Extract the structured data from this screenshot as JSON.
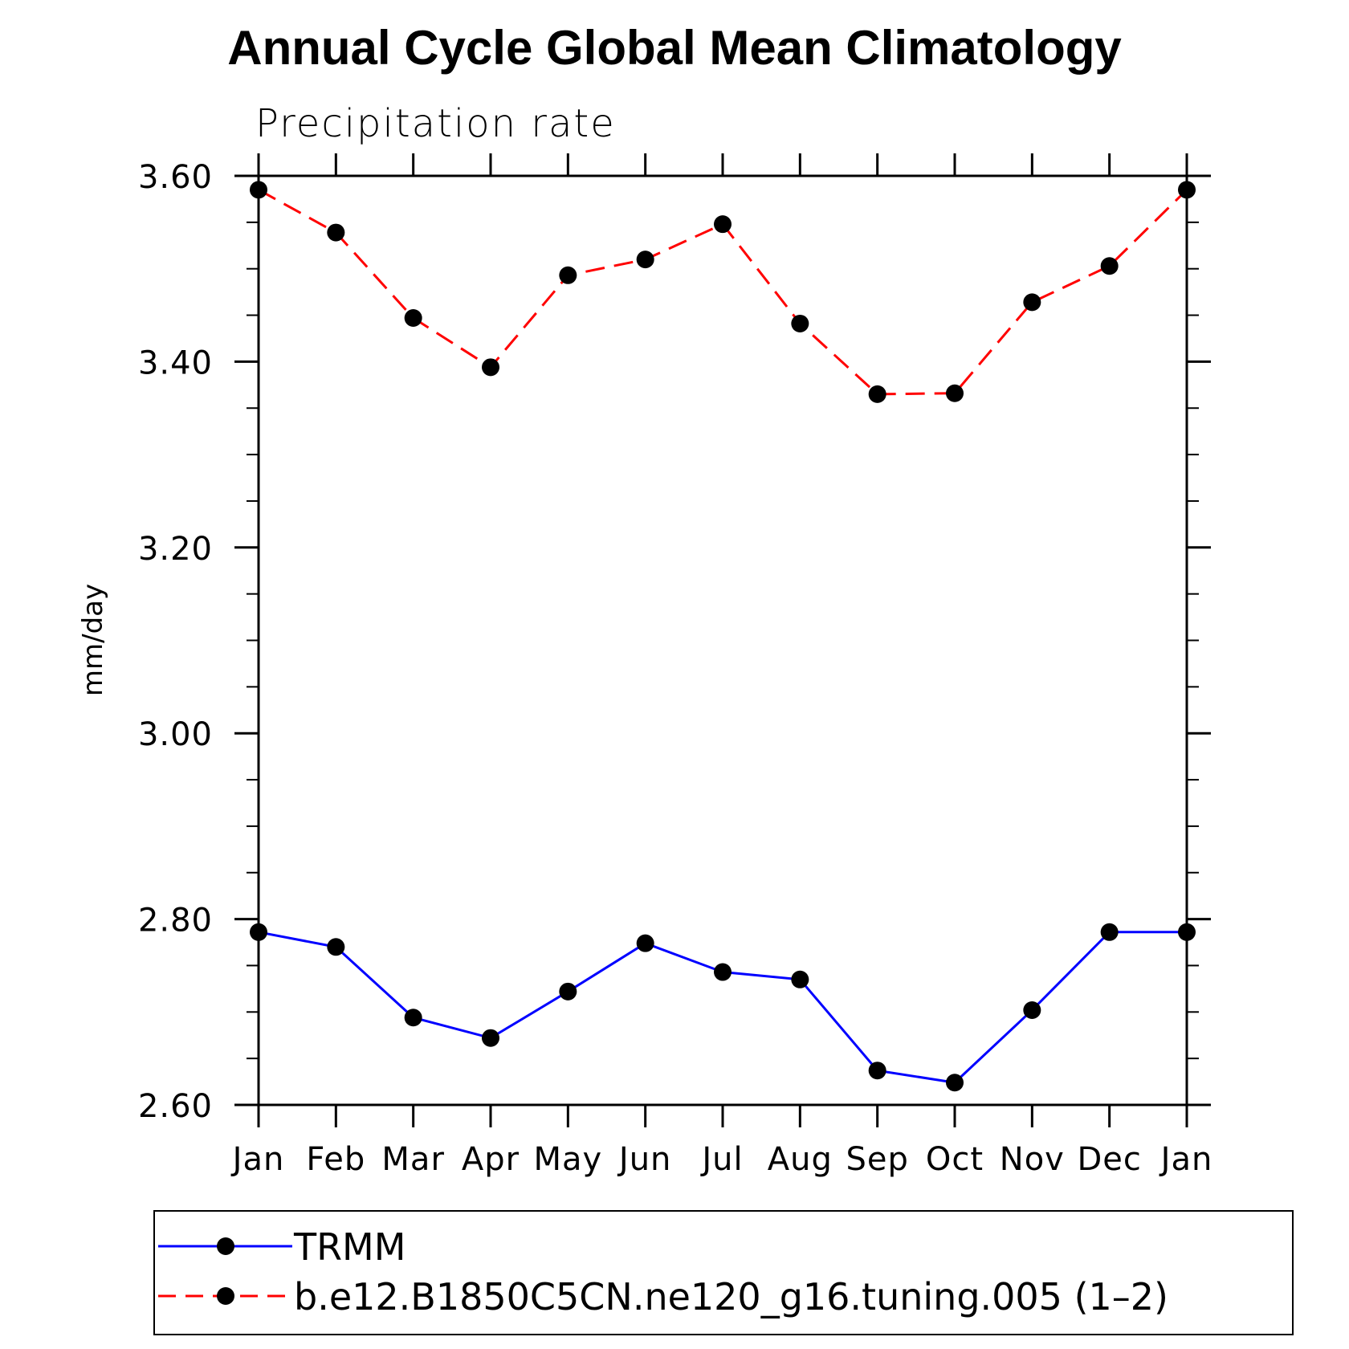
{
  "chart_data": {
    "type": "line",
    "title": "Annual Cycle Global Mean Climatology",
    "subtitle": "Precipitation rate",
    "xlabel": "",
    "ylabel": "mm/day",
    "categories": [
      "Jan",
      "Feb",
      "Mar",
      "Apr",
      "May",
      "Jun",
      "Jul",
      "Aug",
      "Sep",
      "Oct",
      "Nov",
      "Dec",
      "Jan"
    ],
    "ylim": [
      2.6,
      3.6
    ],
    "yticks": [
      "2.60",
      "2.80",
      "3.00",
      "3.20",
      "3.40",
      "3.60"
    ],
    "series": [
      {
        "name": "TRMM",
        "color": "#0000ff",
        "dash": "solid",
        "marker": "filled-circle",
        "values": [
          2.786,
          2.77,
          2.694,
          2.672,
          2.722,
          2.774,
          2.743,
          2.735,
          2.637,
          2.624,
          2.702,
          2.786,
          2.786
        ]
      },
      {
        "name": "b.e12.B1850C5CN.ne120_g16.tuning.005 (1–2)",
        "color": "#ff0000",
        "dash": "dashed",
        "marker": "filled-circle",
        "values": [
          3.585,
          3.539,
          3.447,
          3.394,
          3.493,
          3.51,
          3.548,
          3.441,
          3.365,
          3.366,
          3.464,
          3.503,
          3.585
        ]
      }
    ],
    "grid": false,
    "legend_position": "bottom"
  }
}
